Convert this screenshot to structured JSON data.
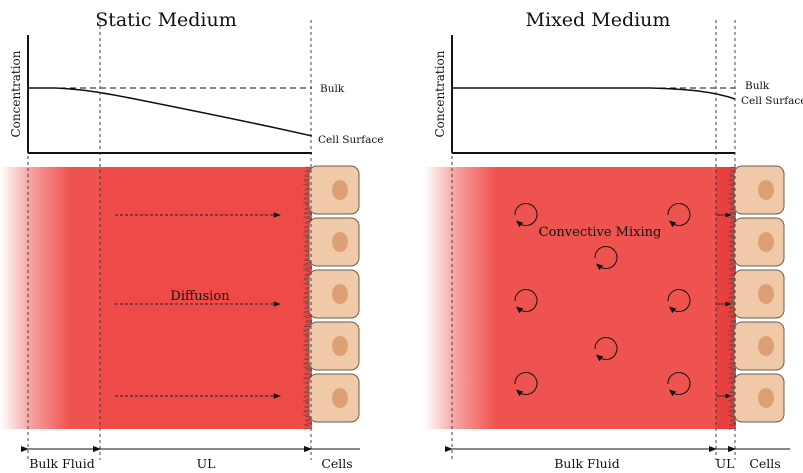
{
  "panels": {
    "static": {
      "title": "Static Medium",
      "y_axis_label": "Concentration",
      "curve_labels": {
        "bulk": "Bulk",
        "surface": "Cell Surface"
      },
      "flow_label": "Diffusion",
      "region_labels": {
        "bulk_fluid": "Bulk Fluid",
        "ul": "UL",
        "cells": "Cells"
      }
    },
    "mixed": {
      "title": "Mixed Medium",
      "y_axis_label": "Concentration",
      "curve_labels": {
        "bulk": "Bulk",
        "surface": "Cell Surface"
      },
      "flow_label": "Convective Mixing",
      "region_labels": {
        "bulk_fluid": "Bulk Fluid",
        "ul": "UL",
        "cells": "Cells"
      }
    }
  },
  "colors": {
    "medium": "#ef5350",
    "boundary_layer": "#e9403f",
    "cell_fill": "#efc9a8",
    "cell_stroke": "#6b5c50",
    "nucleus": "#dd9f74",
    "line": "#111111"
  }
}
